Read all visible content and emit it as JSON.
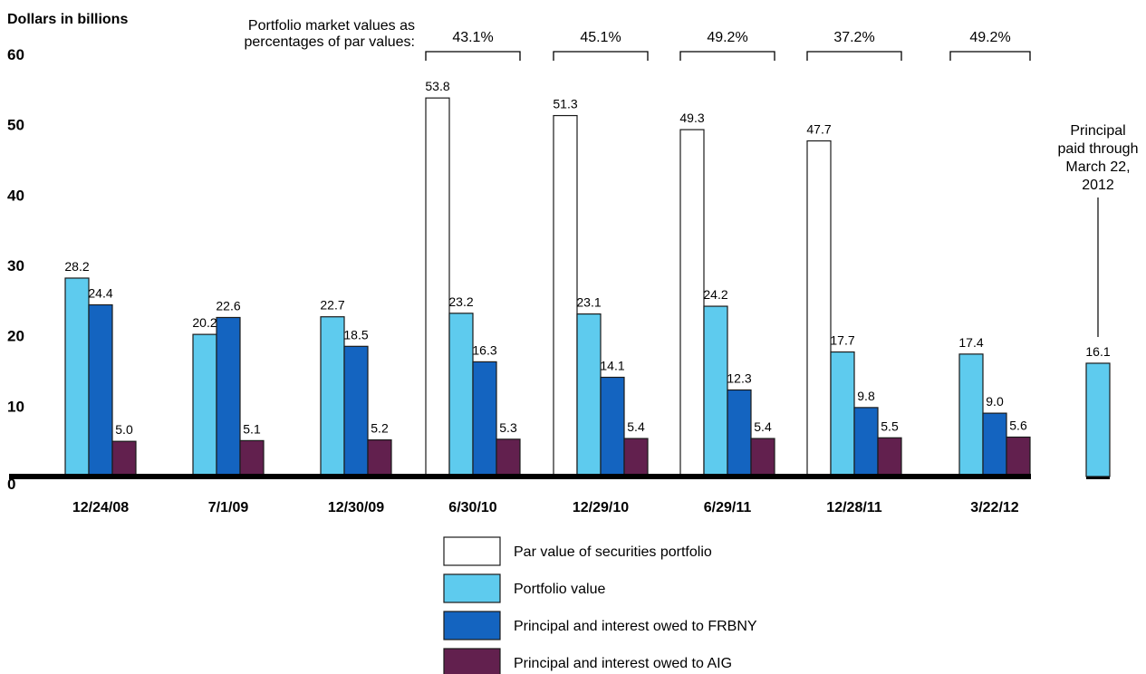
{
  "chart_data": {
    "type": "bar",
    "ylabel": "Dollars in billions",
    "ylim": [
      0,
      60
    ],
    "yticks": [
      "0",
      "10",
      "20",
      "30",
      "40",
      "50",
      "60"
    ],
    "grid": false,
    "categories": [
      "12/24/08",
      "7/1/09",
      "12/30/09",
      "6/30/10",
      "12/29/10",
      "6/29/11",
      "12/28/11",
      "3/22/12"
    ],
    "series": [
      {
        "name": "Par value of securities portfolio",
        "color": "#ffffff",
        "values": [
          null,
          null,
          null,
          53.8,
          51.3,
          49.3,
          47.7,
          null
        ],
        "labels": [
          "",
          "",
          "",
          "53.8",
          "51.3",
          "49.3",
          "47.7",
          ""
        ]
      },
      {
        "name": "Portfolio value",
        "color": "#5ecbee",
        "values": [
          28.2,
          20.2,
          22.7,
          23.2,
          23.1,
          24.2,
          17.7,
          17.4
        ],
        "labels": [
          "28.2",
          "20.2",
          "22.7",
          "23.2",
          "23.1",
          "24.2",
          "17.7",
          "17.4"
        ]
      },
      {
        "name": "Principal and interest owed to FRBNY",
        "color": "#1464c0",
        "values": [
          24.4,
          22.6,
          18.5,
          16.3,
          14.1,
          12.3,
          9.8,
          9.0
        ],
        "labels": [
          "24.4",
          "22.6",
          "18.5",
          "16.3",
          "14.1",
          "12.3",
          "9.8",
          "9.0"
        ]
      },
      {
        "name": "Principal and interest owed to AIG",
        "color": "#62204e",
        "values": [
          5.0,
          5.1,
          5.2,
          5.3,
          5.4,
          5.4,
          5.5,
          5.6
        ],
        "labels": [
          "5.0",
          "5.1",
          "5.2",
          "5.3",
          "5.4",
          "5.4",
          "5.5",
          "5.6"
        ]
      }
    ],
    "annotation_title": [
      "Portfolio market values as",
      "percentages of par values:"
    ],
    "percentages": [
      {
        "category": "6/30/10",
        "label": "43.1%"
      },
      {
        "category": "12/29/10",
        "label": "45.1%"
      },
      {
        "category": "6/29/11",
        "label": "49.2%"
      },
      {
        "category": "12/28/11",
        "label": "37.2%"
      },
      {
        "category": "3/22/12",
        "label": "49.2%"
      }
    ],
    "extra_bar": {
      "value": 16.1,
      "label": "16.1",
      "color": "#5ecbee",
      "caption": [
        "Principal",
        "paid through",
        "March 22,",
        "2012"
      ]
    },
    "legend_position": "bottom"
  }
}
